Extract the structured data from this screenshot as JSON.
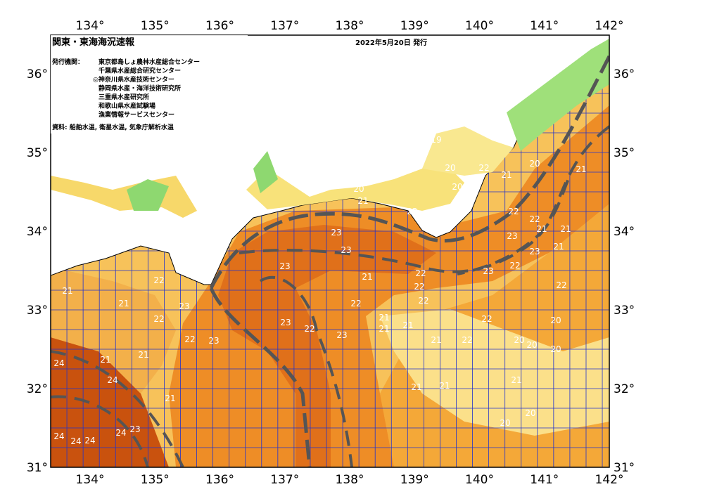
{
  "header": {
    "title": "関東・東海海況速報",
    "date": "2022年5月20日 発行"
  },
  "issuers": {
    "label": "発行機関：",
    "orgs": [
      "東京都島しょ農林水産総合センター",
      "千葉県水産総合研究センター",
      "◎神奈川県水産技術センター",
      "静岡県水産・海洋技術研究所",
      "三重県水産研究所",
      "和歌山県水産試験場",
      "漁業情報サービスセンター"
    ]
  },
  "source": "資料: 船舶水温, 衛星水温, 気象庁解析水温",
  "lon_labels": [
    "134°",
    "135°",
    "136°",
    "137°",
    "138°",
    "139°",
    "140°",
    "141°",
    "142°"
  ],
  "lat_labels": [
    "36°",
    "35°",
    "34°",
    "33°",
    "32°",
    "31°"
  ],
  "temperatures": [
    20,
    20,
    21,
    20,
    22,
    19,
    20,
    20,
    21,
    20,
    22,
    21,
    22,
    23,
    23,
    23,
    21,
    22,
    22,
    22,
    22,
    21,
    21,
    21,
    22,
    22,
    23,
    23,
    23,
    22,
    21,
    21,
    22,
    21,
    22,
    21,
    22,
    23,
    23,
    23,
    22,
    23,
    21,
    20,
    20,
    20,
    20,
    21,
    24,
    24,
    24,
    24,
    24,
    24,
    23,
    21,
    21,
    21,
    22,
    22,
    21,
    21,
    20,
    20,
    21,
    21
  ]
}
